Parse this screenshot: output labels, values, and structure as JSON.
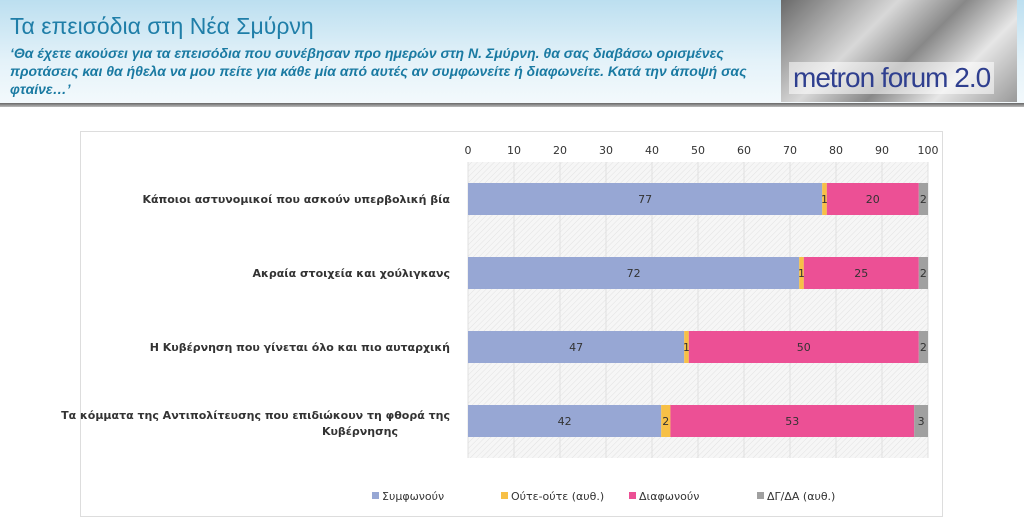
{
  "header": {
    "title": "Τα επεισόδια στη Νέα Σμύρνη",
    "subtitle": "‘Θα έχετε ακούσει για τα επεισόδια που συνέβησαν προ ημερών στη Ν. Σμύρνη. θα σας διαβάσω ορισμένες προτάσεις και θα ήθελα να μου πείτε για κάθε μία από αυτές αν συμφωνείτε ή διαφωνείτε. Κατά την άποψή σας φταίνε…’",
    "logo_text": "metron forum 2.0"
  },
  "chart_data": {
    "type": "bar",
    "stacked": true,
    "orientation": "horizontal",
    "categories": [
      "Κάποιοι αστυνομικοί που ασκούν υπερβολική βία",
      "Ακραία στοιχεία και χούλιγκανς",
      "Η Κυβέρνηση που γίνεται όλο και πιο αυταρχική",
      "Τα κόμματα της Αντιπολίτευσης που επιδιώκουν τη φθορά της Κυβέρνησης"
    ],
    "series": [
      {
        "name": "Συμφωνούν",
        "color": "#97a7d4",
        "values": [
          77,
          72,
          47,
          42
        ]
      },
      {
        "name": "Ούτε-ούτε (αυθ.)",
        "color": "#f7c046",
        "values": [
          1,
          1,
          1,
          2
        ]
      },
      {
        "name": "Διαφωνούν",
        "color": "#ec5095",
        "values": [
          20,
          25,
          50,
          53
        ]
      },
      {
        "name": "ΔΓ/ΔΑ (αυθ.)",
        "color": "#a0a0a0",
        "values": [
          2,
          2,
          2,
          3
        ]
      }
    ],
    "xlim": [
      0,
      100
    ],
    "xticks": [
      0,
      10,
      20,
      30,
      40,
      50,
      60,
      70,
      80,
      90,
      100
    ],
    "grid": true,
    "legend": "bottom"
  }
}
